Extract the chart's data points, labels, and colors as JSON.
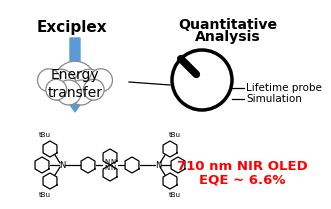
{
  "title_left": "Exciplex",
  "title_right_line1": "Quantitative",
  "title_right_line2": "Analysis",
  "cloud_text": "Energy\ntransfer",
  "arrow_color": "#5b9bd5",
  "label1": "Lifetime probe",
  "label2": "Simulation",
  "red_text_line1": "710 nm NIR OLED",
  "red_text_line2": "EQE ~ 6.6%",
  "red_color": "#ff0000",
  "bg_color": "#ffffff",
  "title_fontsize": 11,
  "cloud_fontsize": 10,
  "label_fontsize": 7.5,
  "red_fontsize": 9.5,
  "cloud_circles": [
    [
      0.0,
      0.0,
      0.4
    ],
    [
      0.28,
      0.08,
      0.3
    ],
    [
      -0.28,
      0.08,
      0.3
    ],
    [
      0.5,
      -0.05,
      0.22
    ],
    [
      -0.5,
      -0.05,
      0.22
    ],
    [
      0.12,
      0.3,
      0.24
    ],
    [
      -0.12,
      0.3,
      0.24
    ],
    [
      0.36,
      0.22,
      0.2
    ],
    [
      -0.36,
      0.22,
      0.2
    ]
  ]
}
